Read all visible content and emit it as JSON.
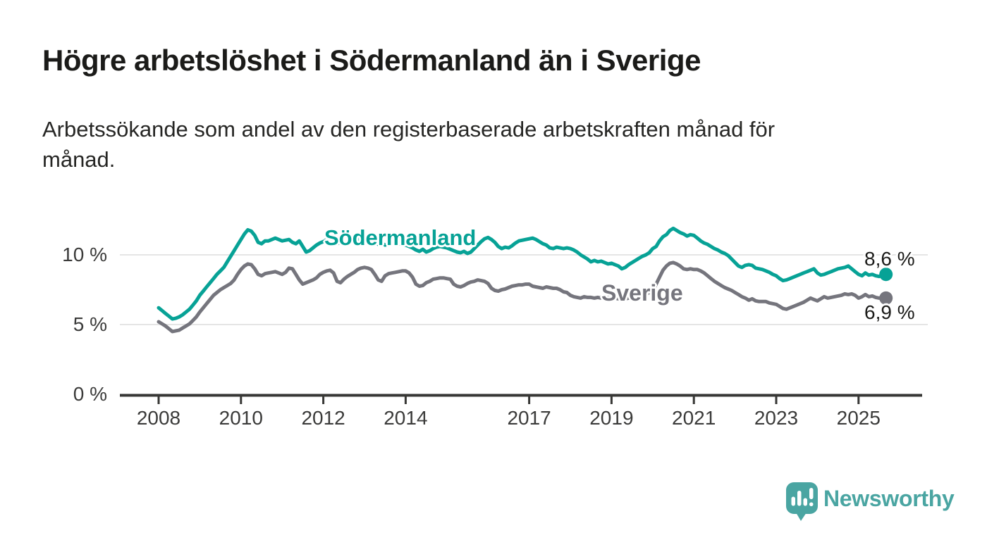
{
  "header": {
    "title": "Högre arbetslöshet i Södermanland än i Sverige",
    "subtitle": "Arbetssökande som andel av den registerbaserade arbetskraften månad för månad.",
    "subtitle_lines": [
      "Arbetssökande som andel av den registerbaserade arbetskraften månad för",
      "månad."
    ]
  },
  "chart_data": {
    "type": "line",
    "unit": "%",
    "frequency": "monthly",
    "x_start": "2008-01",
    "x_end": "2025-09",
    "grid": "horizontal",
    "legend_position": "inline-labels",
    "ylim": [
      0,
      13.1
    ],
    "y_ticks": [
      {
        "value": 10,
        "label": "10 %"
      },
      {
        "value": 5,
        "label": "5 %"
      },
      {
        "value": 0,
        "label": "0 %"
      }
    ],
    "x_tick_years": [
      2008,
      2010,
      2012,
      2014,
      2017,
      2019,
      2021,
      2023,
      2025
    ],
    "x_tick_labels": [
      "2008",
      "2010",
      "2012",
      "2014",
      "2017",
      "2019",
      "2021",
      "2023",
      "2025"
    ],
    "colors": {
      "sodermanland": "#07a296",
      "sverige": "#75757d",
      "grid": "#e5e5e5",
      "axis": "#373735"
    },
    "series": [
      {
        "name": "Södermanland",
        "label_text": "Södermanland",
        "color": "#07a296",
        "end_label": "8,6 %",
        "end_value": 8.6,
        "values": [
          6.2,
          6.0,
          5.8,
          5.6,
          5.4,
          5.45,
          5.55,
          5.7,
          5.9,
          6.1,
          6.4,
          6.7,
          7.1,
          7.4,
          7.7,
          8.0,
          8.3,
          8.6,
          8.85,
          9.1,
          9.5,
          9.9,
          10.3,
          10.7,
          11.1,
          11.5,
          11.8,
          11.7,
          11.4,
          10.9,
          10.8,
          11.0,
          11.0,
          11.1,
          11.2,
          11.1,
          11.0,
          11.05,
          11.1,
          10.9,
          10.8,
          11.0,
          10.6,
          10.2,
          10.3,
          10.5,
          10.7,
          10.85,
          10.95,
          11.1,
          11.25,
          11.0,
          10.8,
          10.9,
          10.75,
          10.85,
          11.0,
          11.1,
          11.15,
          11.1,
          11.05,
          11.1,
          11.0,
          10.9,
          10.75,
          10.85,
          10.7,
          10.75,
          10.85,
          10.9,
          10.85,
          10.75,
          10.7,
          10.6,
          10.5,
          10.35,
          10.25,
          10.4,
          10.2,
          10.3,
          10.45,
          10.55,
          10.6,
          10.55,
          10.5,
          10.4,
          10.3,
          10.2,
          10.15,
          10.25,
          10.1,
          10.2,
          10.45,
          10.7,
          10.95,
          11.15,
          11.25,
          11.1,
          10.9,
          10.6,
          10.45,
          10.55,
          10.5,
          10.65,
          10.85,
          11.0,
          11.05,
          11.1,
          11.15,
          11.2,
          11.1,
          10.95,
          10.8,
          10.7,
          10.5,
          10.45,
          10.55,
          10.5,
          10.45,
          10.5,
          10.45,
          10.35,
          10.2,
          10.0,
          9.85,
          9.7,
          9.5,
          9.6,
          9.5,
          9.55,
          9.45,
          9.35,
          9.4,
          9.3,
          9.2,
          9.0,
          9.1,
          9.3,
          9.45,
          9.6,
          9.75,
          9.9,
          10.0,
          10.15,
          10.45,
          10.6,
          11.0,
          11.3,
          11.45,
          11.75,
          11.9,
          11.75,
          11.6,
          11.5,
          11.35,
          11.45,
          11.4,
          11.2,
          11.0,
          10.85,
          10.75,
          10.6,
          10.45,
          10.35,
          10.2,
          10.1,
          9.95,
          9.7,
          9.45,
          9.2,
          9.1,
          9.25,
          9.3,
          9.25,
          9.05,
          9.0,
          8.95,
          8.85,
          8.75,
          8.6,
          8.5,
          8.3,
          8.15,
          8.2,
          8.3,
          8.4,
          8.5,
          8.6,
          8.7,
          8.8,
          8.9,
          9.0,
          8.7,
          8.55,
          8.6,
          8.7,
          8.8,
          8.9,
          9.0,
          9.05,
          9.1,
          9.2,
          9.0,
          8.8,
          8.6,
          8.5,
          8.7,
          8.55,
          8.6,
          8.5,
          8.45,
          8.55,
          8.6
        ]
      },
      {
        "name": "Sverige",
        "label_text": "Sverige",
        "color": "#75757d",
        "end_label": "6,9 %",
        "end_value": 6.9,
        "values": [
          5.2,
          5.05,
          4.9,
          4.7,
          4.5,
          4.55,
          4.6,
          4.75,
          4.9,
          5.05,
          5.3,
          5.55,
          5.9,
          6.2,
          6.5,
          6.8,
          7.1,
          7.3,
          7.5,
          7.65,
          7.8,
          7.95,
          8.2,
          8.6,
          8.95,
          9.2,
          9.35,
          9.3,
          9.0,
          8.6,
          8.5,
          8.65,
          8.7,
          8.75,
          8.8,
          8.7,
          8.6,
          8.75,
          9.05,
          9.0,
          8.6,
          8.2,
          7.9,
          8.0,
          8.1,
          8.2,
          8.35,
          8.6,
          8.75,
          8.85,
          8.9,
          8.7,
          8.1,
          8.0,
          8.25,
          8.45,
          8.6,
          8.75,
          8.95,
          9.05,
          9.1,
          9.05,
          8.95,
          8.6,
          8.2,
          8.1,
          8.5,
          8.65,
          8.7,
          8.75,
          8.8,
          8.85,
          8.85,
          8.7,
          8.4,
          7.9,
          7.75,
          7.8,
          8.0,
          8.1,
          8.25,
          8.3,
          8.35,
          8.35,
          8.3,
          8.25,
          7.9,
          7.75,
          7.7,
          7.8,
          7.95,
          8.05,
          8.1,
          8.2,
          8.15,
          8.1,
          7.95,
          7.6,
          7.45,
          7.4,
          7.5,
          7.55,
          7.65,
          7.75,
          7.8,
          7.85,
          7.85,
          7.9,
          7.9,
          7.75,
          7.7,
          7.65,
          7.6,
          7.7,
          7.65,
          7.6,
          7.6,
          7.5,
          7.35,
          7.3,
          7.1,
          7.0,
          6.95,
          6.9,
          7.0,
          6.95,
          6.95,
          6.9,
          6.95,
          6.9,
          6.9,
          6.95,
          6.9,
          6.9,
          6.85,
          6.8,
          6.85,
          6.9,
          6.95,
          7.0,
          7.0,
          7.05,
          7.15,
          7.3,
          7.4,
          7.9,
          8.4,
          8.9,
          9.2,
          9.4,
          9.45,
          9.35,
          9.2,
          9.0,
          8.95,
          9.0,
          8.95,
          8.95,
          8.85,
          8.7,
          8.5,
          8.3,
          8.1,
          7.95,
          7.8,
          7.65,
          7.55,
          7.45,
          7.3,
          7.15,
          7.0,
          6.9,
          6.75,
          6.85,
          6.7,
          6.65,
          6.65,
          6.65,
          6.55,
          6.5,
          6.45,
          6.3,
          6.15,
          6.1,
          6.2,
          6.3,
          6.4,
          6.5,
          6.6,
          6.75,
          6.9,
          6.8,
          6.7,
          6.85,
          7.0,
          6.9,
          6.95,
          7.0,
          7.05,
          7.1,
          7.2,
          7.15,
          7.2,
          7.1,
          6.9,
          7.0,
          7.15,
          7.0,
          7.05,
          6.95,
          6.9,
          6.95,
          6.9
        ]
      }
    ]
  },
  "footer": {
    "brand": "Newsworthy",
    "logo_icon": "bar-chart-speech-bubble-icon"
  }
}
